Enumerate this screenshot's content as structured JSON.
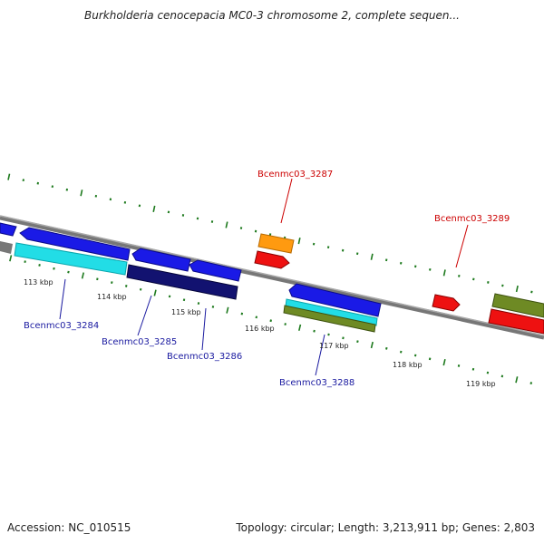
{
  "title": "Burkholderia cenocepacia MC0-3 chromosome 2, complete sequen...",
  "footer": {
    "accession": "Accession: NC_010515",
    "summary": "Topology: circular; Length: 3,213,911 bp; Genes: 2,803"
  },
  "axis": {
    "tick_labels": [
      "113 kbp",
      "114 kbp",
      "115 kbp",
      "116 kbp",
      "117 kbp",
      "118 kbp",
      "119 kbp"
    ]
  },
  "genes": {
    "Bcenmc03_3284": "Bcenmc03_3284",
    "Bcenmc03_3285": "Bcenmc03_3285",
    "Bcenmc03_3286": "Bcenmc03_3286",
    "Bcenmc03_3287": "Bcenmc03_3287",
    "Bcenmc03_3288": "Bcenmc03_3288",
    "Bcenmc03_3289": "Bcenmc03_3289"
  },
  "colors": {
    "blue": "#1a1ae6",
    "cyan": "#22dde6",
    "navy": "#121270",
    "orange": "#ff9a10",
    "red": "#ee1111",
    "olive": "#6e8a24",
    "backbone": "#888888",
    "tick": "#1e7a1e",
    "label_blue": "#1a1aa0",
    "label_red": "#cc0000"
  }
}
